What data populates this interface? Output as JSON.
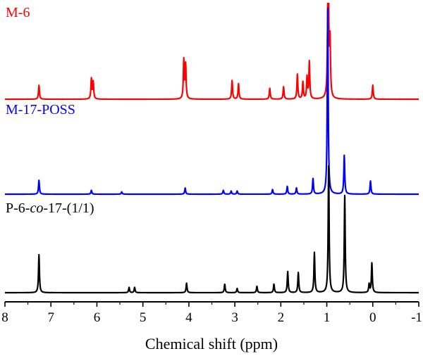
{
  "chart_data": {
    "type": "line",
    "xlabel": "Chemical shift (ppm)",
    "ylabel": "",
    "xlim": [
      8,
      -1
    ],
    "x_reversed": true,
    "x_ticks": [
      8,
      7,
      6,
      5,
      4,
      3,
      2,
      1,
      0,
      -1
    ],
    "x_tick_labels": [
      "8",
      "7",
      "6",
      "5",
      "4",
      "3",
      "2",
      "1",
      "0",
      "-1"
    ],
    "grid": false,
    "legend": "none",
    "series": [
      {
        "name": "M-6",
        "label_parts": [
          {
            "text": "M-6",
            "italic": false
          }
        ],
        "color": "#ff0000",
        "peaks": [
          {
            "x": 7.26,
            "h": 0.18
          },
          {
            "x": 6.12,
            "h": 0.26
          },
          {
            "x": 6.08,
            "h": 0.22
          },
          {
            "x": 4.11,
            "h": 0.5
          },
          {
            "x": 4.07,
            "h": 0.44
          },
          {
            "x": 3.06,
            "h": 0.24
          },
          {
            "x": 2.92,
            "h": 0.2
          },
          {
            "x": 2.24,
            "h": 0.14
          },
          {
            "x": 1.94,
            "h": 0.16
          },
          {
            "x": 1.64,
            "h": 0.32
          },
          {
            "x": 1.52,
            "h": 0.22
          },
          {
            "x": 1.43,
            "h": 0.28
          },
          {
            "x": 1.38,
            "h": 0.48
          },
          {
            "x": 0.97,
            "h": 2.2
          },
          {
            "x": 0.93,
            "h": 0.7
          },
          {
            "x": 0.0,
            "h": 0.18
          }
        ]
      },
      {
        "name": "M-17-POSS",
        "label_parts": [
          {
            "text": "M-17-POSS",
            "italic": false
          }
        ],
        "color": "#0000ff",
        "peaks": [
          {
            "x": 7.26,
            "h": 0.18
          },
          {
            "x": 6.12,
            "h": 0.05
          },
          {
            "x": 5.46,
            "h": 0.03
          },
          {
            "x": 4.08,
            "h": 0.08
          },
          {
            "x": 3.25,
            "h": 0.05
          },
          {
            "x": 3.08,
            "h": 0.04
          },
          {
            "x": 2.95,
            "h": 0.04
          },
          {
            "x": 2.18,
            "h": 0.06
          },
          {
            "x": 1.86,
            "h": 0.1
          },
          {
            "x": 1.66,
            "h": 0.08
          },
          {
            "x": 1.3,
            "h": 0.2
          },
          {
            "x": 0.98,
            "h": 2.4
          },
          {
            "x": 0.62,
            "h": 0.5
          },
          {
            "x": 0.05,
            "h": 0.17
          }
        ]
      },
      {
        "name": "P-6-co-17-(1/1)",
        "label_parts": [
          {
            "text": "P-6-",
            "italic": false
          },
          {
            "text": "co",
            "italic": true
          },
          {
            "text": "-17-(1/1)",
            "italic": false
          }
        ],
        "color": "#000000",
        "peaks": [
          {
            "x": 7.26,
            "h": 0.36
          },
          {
            "x": 5.3,
            "h": 0.05
          },
          {
            "x": 5.18,
            "h": 0.05
          },
          {
            "x": 4.05,
            "h": 0.09
          },
          {
            "x": 3.22,
            "h": 0.08
          },
          {
            "x": 2.95,
            "h": 0.04
          },
          {
            "x": 2.52,
            "h": 0.06
          },
          {
            "x": 2.15,
            "h": 0.08
          },
          {
            "x": 1.85,
            "h": 0.2
          },
          {
            "x": 1.62,
            "h": 0.19
          },
          {
            "x": 1.27,
            "h": 0.38
          },
          {
            "x": 0.96,
            "h": 1.2
          },
          {
            "x": 0.61,
            "h": 0.92
          },
          {
            "x": 0.08,
            "h": 0.08
          },
          {
            "x": 0.02,
            "h": 0.28
          }
        ]
      }
    ]
  }
}
